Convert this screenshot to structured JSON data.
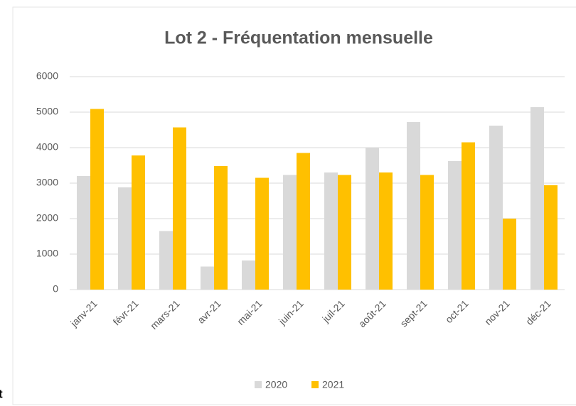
{
  "chart_data": {
    "type": "bar",
    "title": "Lot 2 - Fréquentation mensuelle",
    "categories": [
      "janv-21",
      "févr-21",
      "mars-21",
      "avr-21",
      "mai-21",
      "juin-21",
      "juil-21",
      "août-21",
      "sept-21",
      "oct-21",
      "nov-21",
      "déc-21"
    ],
    "series": [
      {
        "name": "2020",
        "color": "#d9d9d9",
        "values": [
          3200,
          2880,
          1650,
          650,
          820,
          3230,
          3300,
          4000,
          4720,
          3620,
          4620,
          5140
        ]
      },
      {
        "name": "2021",
        "color": "#ffc000",
        "values": [
          5090,
          3780,
          4570,
          3480,
          3150,
          3850,
          3230,
          3300,
          3230,
          4150,
          2000,
          2940
        ]
      }
    ],
    "ylim": [
      0,
      6000
    ],
    "yticks": [
      0,
      1000,
      2000,
      3000,
      4000,
      5000,
      6000
    ],
    "grid": true,
    "legend": "bottom"
  },
  "fragment": "t"
}
